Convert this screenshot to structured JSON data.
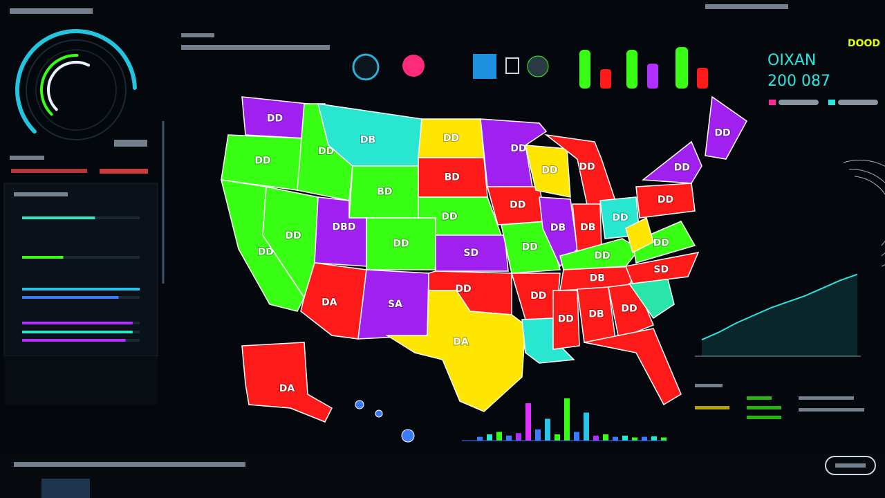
{
  "header": {
    "name": "OIXAN",
    "number": "200 087",
    "badge": "DOOD"
  },
  "gauge": {
    "values": [
      62,
      38,
      45
    ],
    "colors": [
      "#22c4e0",
      "#39ff14",
      "#e8f4ff"
    ]
  },
  "progress": {
    "values": [
      62,
      35,
      100,
      82,
      94,
      94,
      88
    ],
    "colors": [
      "#2ee6c8",
      "#39ff14",
      "#29c4e8",
      "#3a7bff",
      "#b030ff",
      "#2ee6c8",
      "#b030ff"
    ]
  },
  "map": {
    "regions": [
      {
        "label": "DD",
        "color": "#a020f0"
      },
      {
        "label": "DD",
        "color": "#39ff14"
      },
      {
        "label": "DD",
        "color": "#39ff14"
      },
      {
        "label": "DD",
        "color": "#39ff14"
      },
      {
        "label": "DD",
        "color": "#39ff14"
      },
      {
        "label": "DB",
        "color": "#29e6d0"
      },
      {
        "label": "BD",
        "color": "#39ff14"
      },
      {
        "label": "DBD",
        "color": "#a020f0"
      },
      {
        "label": "DD",
        "color": "#39ff14"
      },
      {
        "label": "DA",
        "color": "#ff1a1a"
      },
      {
        "label": "SA",
        "color": "#a020f0"
      },
      {
        "label": "DD",
        "color": "#ffe600"
      },
      {
        "label": "BD",
        "color": "#ff1a1a"
      },
      {
        "label": "DD",
        "color": "#39ff14"
      },
      {
        "label": "SD",
        "color": "#a020f0"
      },
      {
        "label": "DD",
        "color": "#ff1a1a"
      },
      {
        "label": "DA",
        "color": "#ffe600"
      },
      {
        "label": "DD",
        "color": "#a020f0"
      },
      {
        "label": "DD",
        "color": "#ff1a1a"
      },
      {
        "label": "DD",
        "color": "#39ff14"
      },
      {
        "label": "DD",
        "color": "#ff1a1a"
      },
      {
        "color": "#29e6d0"
      },
      {
        "label": "DD",
        "color": "#ffe600"
      },
      {
        "label": "DD",
        "color": "#ff1a1a"
      },
      {
        "label": "DB",
        "color": "#a020f0"
      },
      {
        "label": "DB",
        "color": "#ff1a1a"
      },
      {
        "label": "DD",
        "color": "#29e6d0"
      },
      {
        "label": "DD",
        "color": "#39ff14"
      },
      {
        "label": "DB",
        "color": "#ff1a1a"
      },
      {
        "label": "DD",
        "color": "#ff1a1a"
      },
      {
        "label": "DB",
        "color": "#ff1a1a"
      },
      {
        "label": "DD",
        "color": "#ff1a1a"
      },
      {
        "color": "#ff1a1a"
      },
      {
        "color": "#29e6a8"
      },
      {
        "label": "SD",
        "color": "#ff1a1a"
      },
      {
        "label": "DD",
        "color": "#39ff14"
      },
      {
        "color": "#ffe600"
      },
      {
        "label": "DD",
        "color": "#ff1a1a"
      },
      {
        "label": "DD",
        "color": "#a020f0"
      },
      {
        "label": "DD",
        "color": "#a020f0"
      },
      {
        "label": "DA",
        "color": "#ff1a1a"
      }
    ]
  },
  "bar_chart": {
    "values": [
      6,
      10,
      14,
      8,
      12,
      60,
      18,
      35,
      10,
      68,
      14,
      45,
      8,
      10,
      6,
      8,
      5,
      6,
      7,
      5
    ],
    "colors": [
      "#3a7bff",
      "#29e6d0",
      "#39ff14",
      "#3a7bff",
      "#b030ff",
      "#e030ff",
      "#3a7bff",
      "#29c4e8",
      "#39ff14",
      "#39ff14",
      "#3a7bff",
      "#29c4e8",
      "#b030ff",
      "#39ff14",
      "#3a7bff",
      "#29e6d0",
      "#39ff14",
      "#3a7bff",
      "#29e6d0",
      "#39ff14"
    ],
    "ylim": [
      0,
      100
    ]
  },
  "line_chart": {
    "values": [
      8,
      18,
      30,
      40,
      50,
      58,
      66,
      76,
      86,
      94
    ],
    "color": "#29e6e0",
    "ylim": [
      0,
      100
    ]
  }
}
